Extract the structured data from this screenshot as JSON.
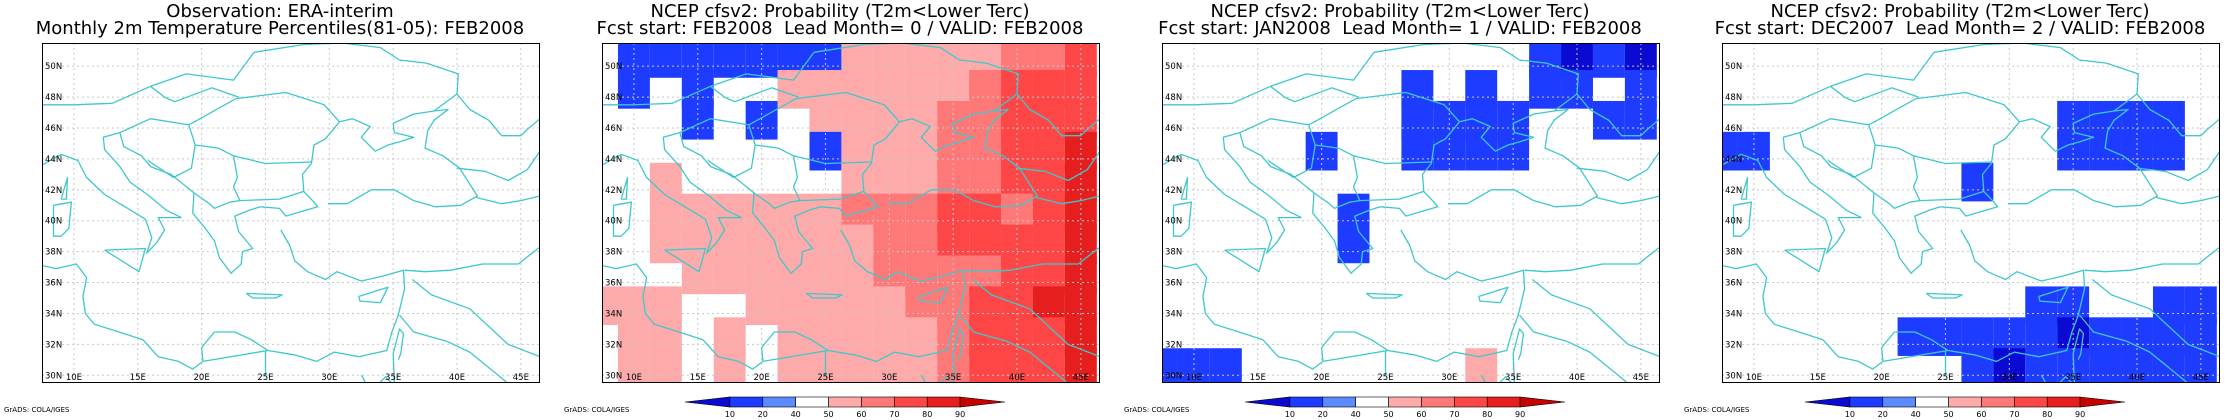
{
  "colors": {
    "coast": "#3ec8cc",
    "grid": "#c8c8c8",
    "frame": "#000000",
    "scale": [
      "#0a0ad2",
      "#1e3cff",
      "#5a8cff",
      "#ffffff",
      "#ffaaaa",
      "#ff7878",
      "#ff4646",
      "#e61e1e",
      "#c80000"
    ],
    "cells": {
      "b1": "#1e3cff",
      "b2": "#0a0ad2",
      "r1": "#ffaaaa",
      "r2": "#ff7878",
      "r3": "#ff4646",
      "r4": "#e61e1e"
    }
  },
  "axes": {
    "lon_range": [
      7.5,
      46.5
    ],
    "lat_range": [
      29.5,
      51.5
    ],
    "lon_ticks": [
      10,
      15,
      20,
      25,
      30,
      35,
      40,
      45
    ],
    "lon_labels": [
      "10E",
      "15E",
      "20E",
      "25E",
      "30E",
      "35E",
      "40E",
      "45E"
    ],
    "lat_ticks": [
      30,
      32,
      34,
      36,
      38,
      40,
      42,
      44,
      46,
      48,
      50
    ],
    "lat_labels": [
      "30N",
      "32N",
      "34N",
      "36N",
      "38N",
      "40N",
      "42N",
      "44N",
      "46N",
      "48N",
      "50N"
    ],
    "cell_size_deg": 2.5
  },
  "legend": {
    "labels": [
      "10",
      "20",
      "40",
      "50",
      "60",
      "70",
      "80",
      "90"
    ]
  },
  "panels": [
    {
      "title_lines": [
        "Observation: ERA-interim",
        "Monthly 2m Temperature Percentiles(81-05): FEB2008"
      ],
      "credit": "GrADS: COLA/IGES",
      "has_legend": false,
      "cells": []
    },
    {
      "title_lines": [
        "NCEP cfsv2: Probability (T2m<Lower Terc)",
        "Fcst start: FEB2008  Lead Month= 0 / VALID: FEB2008"
      ],
      "credit": "GrADS: COLA/IGES",
      "has_legend": true,
      "cells": [
        [
          10,
          50.5,
          "b1"
        ],
        [
          12.5,
          50.5,
          "b1"
        ],
        [
          15,
          50.5,
          "b1"
        ],
        [
          17.5,
          50.5,
          "b1"
        ],
        [
          20,
          50.5,
          "b1"
        ],
        [
          22.5,
          50.5,
          "b1"
        ],
        [
          25,
          50.5,
          "b1"
        ],
        [
          27.5,
          50.5,
          "r1"
        ],
        [
          30,
          50.5,
          "r1"
        ],
        [
          32.5,
          50.5,
          "r1"
        ],
        [
          35,
          50.5,
          "r1"
        ],
        [
          37.5,
          50.5,
          "r1"
        ],
        [
          40,
          50.5,
          "r2"
        ],
        [
          42.5,
          50.5,
          "r2"
        ],
        [
          45,
          50.5,
          "r3"
        ],
        [
          10,
          48.5,
          "b1"
        ],
        [
          15,
          48.5,
          "b1"
        ],
        [
          22.5,
          48.5,
          "r1"
        ],
        [
          25,
          48.5,
          "r1"
        ],
        [
          27.5,
          48.5,
          "r1"
        ],
        [
          30,
          48.5,
          "r1"
        ],
        [
          32.5,
          48.5,
          "r1"
        ],
        [
          35,
          48.5,
          "r1"
        ],
        [
          37.5,
          48.5,
          "r2"
        ],
        [
          40,
          48.5,
          "r3"
        ],
        [
          42.5,
          48.5,
          "r3"
        ],
        [
          45,
          48.5,
          "r3"
        ],
        [
          15,
          46.5,
          "b1"
        ],
        [
          20,
          46.5,
          "b1"
        ],
        [
          25,
          46.5,
          "r1"
        ],
        [
          27.5,
          46.5,
          "r1"
        ],
        [
          30,
          46.5,
          "r1"
        ],
        [
          32.5,
          46.5,
          "r1"
        ],
        [
          35,
          46.5,
          "r2"
        ],
        [
          37.5,
          46.5,
          "r2"
        ],
        [
          40,
          46.5,
          "r3"
        ],
        [
          42.5,
          46.5,
          "r3"
        ],
        [
          45,
          46.5,
          "r3"
        ],
        [
          25,
          44.5,
          "b1"
        ],
        [
          27.5,
          44.5,
          "r1"
        ],
        [
          30,
          44.5,
          "r1"
        ],
        [
          32.5,
          44.5,
          "r1"
        ],
        [
          35,
          44.5,
          "r2"
        ],
        [
          37.5,
          44.5,
          "r2"
        ],
        [
          40,
          44.5,
          "r3"
        ],
        [
          42.5,
          44.5,
          "r3"
        ],
        [
          45,
          44.5,
          "r4"
        ],
        [
          12.5,
          42.5,
          "r1"
        ],
        [
          27.5,
          42.5,
          "r1"
        ],
        [
          30,
          42.5,
          "r1"
        ],
        [
          32.5,
          42.5,
          "r1"
        ],
        [
          35,
          42.5,
          "r2"
        ],
        [
          37.5,
          42.5,
          "r2"
        ],
        [
          40,
          42.5,
          "r3"
        ],
        [
          42.5,
          42.5,
          "r3"
        ],
        [
          45,
          42.5,
          "r4"
        ],
        [
          12.5,
          40.5,
          "r1"
        ],
        [
          15,
          40.5,
          "r1"
        ],
        [
          17.5,
          40.5,
          "r1"
        ],
        [
          20,
          40.5,
          "r1"
        ],
        [
          22.5,
          40.5,
          "r1"
        ],
        [
          25,
          40.5,
          "r1"
        ],
        [
          27.5,
          40.5,
          "r2"
        ],
        [
          30,
          40.5,
          "r2"
        ],
        [
          32.5,
          40.5,
          "r2"
        ],
        [
          35,
          40.5,
          "r3"
        ],
        [
          37.5,
          40.5,
          "r3"
        ],
        [
          40,
          40.5,
          "r2"
        ],
        [
          42.5,
          40.5,
          "r3"
        ],
        [
          45,
          40.5,
          "r4"
        ],
        [
          12.5,
          38.5,
          "r1"
        ],
        [
          15,
          38.5,
          "r1"
        ],
        [
          17.5,
          38.5,
          "r1"
        ],
        [
          20,
          38.5,
          "r1"
        ],
        [
          22.5,
          38.5,
          "r1"
        ],
        [
          25,
          38.5,
          "r1"
        ],
        [
          27.5,
          38.5,
          "r1"
        ],
        [
          30,
          38.5,
          "r2"
        ],
        [
          32.5,
          38.5,
          "r2"
        ],
        [
          35,
          38.5,
          "r3"
        ],
        [
          37.5,
          38.5,
          "r3"
        ],
        [
          40,
          38.5,
          "r3"
        ],
        [
          42.5,
          38.5,
          "r3"
        ],
        [
          45,
          38.5,
          "r4"
        ],
        [
          15,
          36.5,
          "r1"
        ],
        [
          17.5,
          36.5,
          "r1"
        ],
        [
          20,
          36.5,
          "r1"
        ],
        [
          22.5,
          36.5,
          "r1"
        ],
        [
          25,
          36.5,
          "r1"
        ],
        [
          27.5,
          36.5,
          "r1"
        ],
        [
          30,
          36.5,
          "r2"
        ],
        [
          32.5,
          36.5,
          "r2"
        ],
        [
          35,
          36.5,
          "r2"
        ],
        [
          37.5,
          36.5,
          "r2"
        ],
        [
          40,
          36.5,
          "r3"
        ],
        [
          42.5,
          36.5,
          "r3"
        ],
        [
          45,
          36.5,
          "r4"
        ],
        [
          7.5,
          34.5,
          "r1"
        ],
        [
          10,
          34.5,
          "r1"
        ],
        [
          12.5,
          34.5,
          "r1"
        ],
        [
          20,
          34.5,
          "r1"
        ],
        [
          22.5,
          34.5,
          "r1"
        ],
        [
          25,
          34.5,
          "r1"
        ],
        [
          27.5,
          34.5,
          "r1"
        ],
        [
          30,
          34.5,
          "r1"
        ],
        [
          32.5,
          34.5,
          "r2"
        ],
        [
          35,
          34.5,
          "r2"
        ],
        [
          37.5,
          34.5,
          "r3"
        ],
        [
          40,
          34.5,
          "r3"
        ],
        [
          42.5,
          34.5,
          "r4"
        ],
        [
          45,
          34.5,
          "r4"
        ],
        [
          10,
          32.5,
          "r1"
        ],
        [
          12.5,
          32.5,
          "r1"
        ],
        [
          17.5,
          32.5,
          "r1"
        ],
        [
          22.5,
          32.5,
          "r1"
        ],
        [
          25,
          32.5,
          "r1"
        ],
        [
          27.5,
          32.5,
          "r1"
        ],
        [
          30,
          32.5,
          "r1"
        ],
        [
          32.5,
          32.5,
          "r1"
        ],
        [
          35,
          32.5,
          "r2"
        ],
        [
          37.5,
          32.5,
          "r3"
        ],
        [
          40,
          32.5,
          "r3"
        ],
        [
          42.5,
          32.5,
          "r3"
        ],
        [
          45,
          32.5,
          "r4"
        ],
        [
          10,
          30.5,
          "r1"
        ],
        [
          12.5,
          30.5,
          "r1"
        ],
        [
          17.5,
          30.5,
          "r1"
        ],
        [
          22.5,
          30.5,
          "r1"
        ],
        [
          25,
          30.5,
          "r1"
        ],
        [
          27.5,
          30.5,
          "r1"
        ],
        [
          30,
          30.5,
          "r1"
        ],
        [
          32.5,
          30.5,
          "r1"
        ],
        [
          35,
          30.5,
          "r2"
        ],
        [
          37.5,
          30.5,
          "r3"
        ],
        [
          40,
          30.5,
          "r3"
        ],
        [
          42.5,
          30.5,
          "r3"
        ],
        [
          45,
          30.5,
          "r4"
        ]
      ]
    },
    {
      "title_lines": [
        "NCEP cfsv2: Probability (T2m<Lower Terc)",
        "Fcst start: JAN2008  Lead Month= 1 / VALID: FEB2008"
      ],
      "credit": "GrADS: COLA/IGES",
      "has_legend": true,
      "cells": [
        [
          37.5,
          50.5,
          "b1"
        ],
        [
          40,
          50.5,
          "b2"
        ],
        [
          42.5,
          50.5,
          "b1"
        ],
        [
          45,
          50.5,
          "b2"
        ],
        [
          27.5,
          48.5,
          "b1"
        ],
        [
          32.5,
          48.5,
          "b1"
        ],
        [
          37.5,
          48.5,
          "b1"
        ],
        [
          40,
          48.5,
          "b1"
        ],
        [
          45,
          48.5,
          "b1"
        ],
        [
          27.5,
          46.5,
          "b1"
        ],
        [
          30,
          46.5,
          "b1"
        ],
        [
          32.5,
          46.5,
          "b1"
        ],
        [
          35,
          46.5,
          "b1"
        ],
        [
          42.5,
          46.5,
          "b1"
        ],
        [
          45,
          46.5,
          "b1"
        ],
        [
          20,
          44.5,
          "b1"
        ],
        [
          27.5,
          44.5,
          "b1"
        ],
        [
          30,
          44.5,
          "b1"
        ],
        [
          32.5,
          44.5,
          "b1"
        ],
        [
          35,
          44.5,
          "b1"
        ],
        [
          22.5,
          40.5,
          "b1"
        ],
        [
          22.5,
          38.5,
          "b1"
        ],
        [
          7.5,
          30.5,
          "b1"
        ],
        [
          10,
          30.5,
          "b1"
        ],
        [
          12.5,
          30.5,
          "b1"
        ],
        [
          32.5,
          30.5,
          "r1"
        ]
      ]
    },
    {
      "title_lines": [
        "NCEP cfsv2: Probability (T2m<Lower Terc)",
        "Fcst start: DEC2007  Lead Month= 2 / VALID: FEB2008"
      ],
      "credit": "GrADS: COLA/IGES",
      "has_legend": true,
      "cells": [
        [
          35,
          46.5,
          "b1"
        ],
        [
          37.5,
          46.5,
          "b1"
        ],
        [
          40,
          46.5,
          "b1"
        ],
        [
          42.5,
          46.5,
          "b1"
        ],
        [
          7.5,
          44.5,
          "b1"
        ],
        [
          10,
          44.5,
          "b1"
        ],
        [
          35,
          44.5,
          "b1"
        ],
        [
          37.5,
          44.5,
          "b1"
        ],
        [
          40,
          44.5,
          "b1"
        ],
        [
          42.5,
          44.5,
          "b1"
        ],
        [
          27.5,
          42.5,
          "b1"
        ],
        [
          32.5,
          34.5,
          "b1"
        ],
        [
          35,
          34.5,
          "b1"
        ],
        [
          42.5,
          34.5,
          "b1"
        ],
        [
          45,
          34.5,
          "b1"
        ],
        [
          22.5,
          32.5,
          "b1"
        ],
        [
          25,
          32.5,
          "b1"
        ],
        [
          27.5,
          32.5,
          "b1"
        ],
        [
          30,
          32.5,
          "b1"
        ],
        [
          32.5,
          32.5,
          "b1"
        ],
        [
          35,
          32.5,
          "b2"
        ],
        [
          37.5,
          32.5,
          "b1"
        ],
        [
          40,
          32.5,
          "b1"
        ],
        [
          42.5,
          32.5,
          "b1"
        ],
        [
          45,
          32.5,
          "b1"
        ],
        [
          27.5,
          30.5,
          "b1"
        ],
        [
          30,
          30.5,
          "b2"
        ],
        [
          32.5,
          30.5,
          "b1"
        ],
        [
          35,
          30.5,
          "b1"
        ],
        [
          37.5,
          30.5,
          "b1"
        ],
        [
          40,
          30.5,
          "b1"
        ],
        [
          42.5,
          30.5,
          "b1"
        ],
        [
          45,
          30.5,
          "b1"
        ]
      ]
    }
  ]
}
